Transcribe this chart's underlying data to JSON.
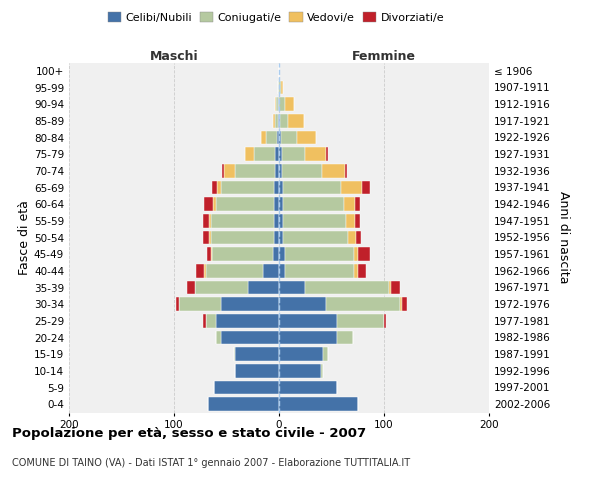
{
  "age_groups": [
    "0-4",
    "5-9",
    "10-14",
    "15-19",
    "20-24",
    "25-29",
    "30-34",
    "35-39",
    "40-44",
    "45-49",
    "50-54",
    "55-59",
    "60-64",
    "65-69",
    "70-74",
    "75-79",
    "80-84",
    "85-89",
    "90-94",
    "95-99",
    "100+"
  ],
  "birth_years": [
    "2002-2006",
    "1997-2001",
    "1992-1996",
    "1987-1991",
    "1982-1986",
    "1977-1981",
    "1972-1976",
    "1967-1971",
    "1962-1966",
    "1957-1961",
    "1952-1956",
    "1947-1951",
    "1942-1946",
    "1937-1941",
    "1932-1936",
    "1927-1931",
    "1922-1926",
    "1917-1921",
    "1912-1916",
    "1907-1911",
    "≤ 1906"
  ],
  "maschi_celibi": [
    68,
    62,
    42,
    42,
    55,
    60,
    55,
    30,
    15,
    6,
    5,
    5,
    5,
    5,
    4,
    4,
    2,
    1,
    1,
    0,
    0
  ],
  "maschi_coniugati": [
    0,
    0,
    0,
    1,
    5,
    10,
    40,
    50,
    55,
    58,
    60,
    60,
    55,
    50,
    38,
    20,
    10,
    3,
    2,
    1,
    0
  ],
  "maschi_vedovi": [
    0,
    0,
    0,
    0,
    0,
    0,
    0,
    0,
    1,
    1,
    2,
    2,
    3,
    4,
    10,
    8,
    5,
    2,
    1,
    0,
    0
  ],
  "maschi_divorziati": [
    0,
    0,
    0,
    0,
    0,
    2,
    3,
    8,
    8,
    4,
    5,
    5,
    8,
    5,
    2,
    0,
    0,
    0,
    0,
    0,
    0
  ],
  "femmine_nubili": [
    75,
    55,
    40,
    42,
    55,
    55,
    45,
    25,
    6,
    6,
    4,
    4,
    4,
    4,
    3,
    3,
    2,
    1,
    0,
    0,
    0
  ],
  "femmine_coniugate": [
    0,
    0,
    2,
    5,
    15,
    45,
    70,
    80,
    65,
    65,
    62,
    60,
    58,
    55,
    38,
    22,
    15,
    8,
    6,
    2,
    0
  ],
  "femmine_vedove": [
    0,
    0,
    0,
    0,
    0,
    0,
    2,
    2,
    4,
    4,
    7,
    8,
    10,
    20,
    22,
    20,
    18,
    15,
    8,
    2,
    0
  ],
  "femmine_divorziate": [
    0,
    0,
    0,
    0,
    0,
    2,
    5,
    8,
    8,
    12,
    5,
    5,
    5,
    8,
    2,
    2,
    0,
    0,
    0,
    0,
    0
  ],
  "color_celibi": "#4472a8",
  "color_coniugati": "#b5c9a0",
  "color_vedovi": "#f0c060",
  "color_divorziati": "#c0202a",
  "xlim": 200,
  "bg_color": "#f0f0f0",
  "title": "Popolazione per età, sesso e stato civile - 2007",
  "subtitle": "COMUNE DI TAINO (VA) - Dati ISTAT 1° gennaio 2007 - Elaborazione TUTTITALIA.IT",
  "ylabel_left": "Fasce di età",
  "ylabel_right": "Anni di nascita",
  "label_maschi": "Maschi",
  "label_femmine": "Femmine",
  "legend_celibi": "Celibi/Nubili",
  "legend_coniugati": "Coniugati/e",
  "legend_vedovi": "Vedovi/e",
  "legend_divorziati": "Divorziati/e"
}
